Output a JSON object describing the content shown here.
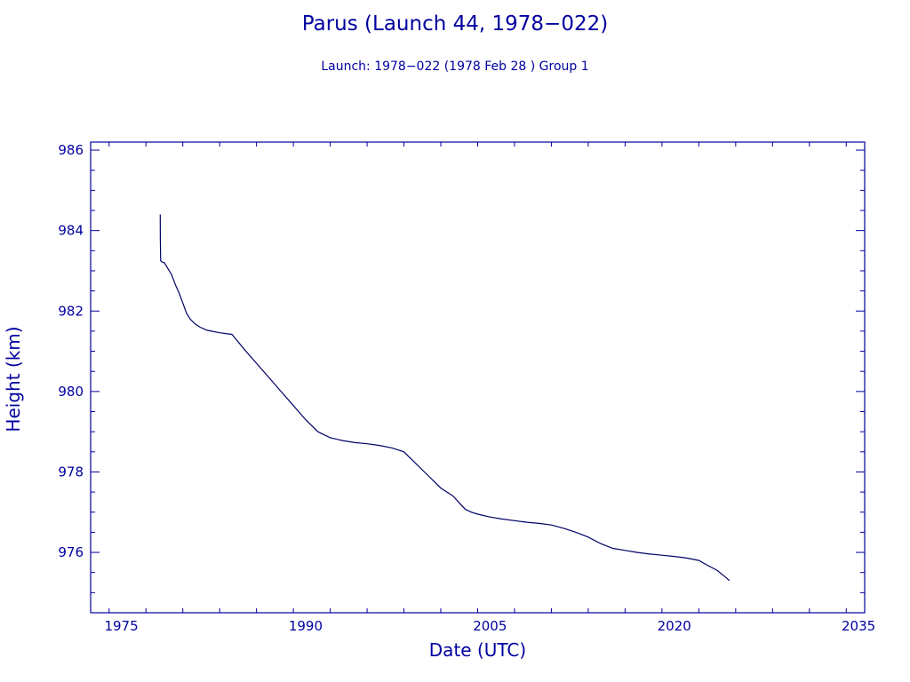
{
  "chart_data": {
    "type": "line",
    "title": "Parus (Launch 44, 1978−022)",
    "subtitle": "Launch: 1978−022  (1978 Feb 28 )  Group 1",
    "xlabel": "Date (UTC)",
    "ylabel": "Height (km)",
    "xlim": [
      1972.5,
      2035.5
    ],
    "ylim": [
      974.5,
      986.2
    ],
    "x_ticks": [
      1975,
      1990,
      2005,
      2020,
      2035
    ],
    "x_tick_labels": [
      "1975",
      "1990",
      "2005",
      "2020",
      "2035"
    ],
    "y_ticks": [
      976,
      978,
      980,
      982,
      984,
      986
    ],
    "y_tick_labels": [
      "976",
      "978",
      "980",
      "982",
      "984",
      "986"
    ],
    "grid": false,
    "line_color": "#000066",
    "axis_color": "#0000a0",
    "series": [
      {
        "x": [
          1978.16,
          1978.17,
          1978.2,
          1978.3,
          1978.5,
          1978.8,
          1979.1,
          1979.4,
          1979.7,
          1980.0,
          1980.3,
          1980.6,
          1981.0,
          1981.4,
          1982.0,
          1983.0,
          1984.0,
          1985.0,
          1986.0,
          1987.0,
          1988.0,
          1989.0,
          1990.0,
          1991.0,
          1992.0,
          1993.0,
          1994.0,
          1995.0,
          1996.0,
          1997.0,
          1998.0,
          1999.0,
          2000.0,
          2001.0,
          2002.0,
          2002.6,
          2003.0,
          2003.5,
          2004.0,
          2005.0,
          2006.0,
          2007.0,
          2008.0,
          2009.0,
          2010.0,
          2011.0,
          2012.0,
          2013.0,
          2014.0,
          2015.0,
          2016.0,
          2017.0,
          2018.0,
          2019.0,
          2020.0,
          2021.0,
          2022.0,
          2022.7,
          2023.5,
          2024.1,
          2024.5
        ],
        "y": [
          984.4,
          983.8,
          983.25,
          983.22,
          983.2,
          983.05,
          982.9,
          982.65,
          982.45,
          982.2,
          981.95,
          981.8,
          981.68,
          981.6,
          981.52,
          981.46,
          981.42,
          981.05,
          980.7,
          980.35,
          980.0,
          979.65,
          979.3,
          979.0,
          978.85,
          978.78,
          978.73,
          978.7,
          978.66,
          978.6,
          978.5,
          978.2,
          977.9,
          977.6,
          977.4,
          977.2,
          977.07,
          977.0,
          976.95,
          976.88,
          976.83,
          976.79,
          976.75,
          976.72,
          976.68,
          976.6,
          976.5,
          976.38,
          976.22,
          976.1,
          976.05,
          976.0,
          975.96,
          975.93,
          975.9,
          975.86,
          975.8,
          975.68,
          975.55,
          975.4,
          975.3
        ]
      }
    ]
  }
}
